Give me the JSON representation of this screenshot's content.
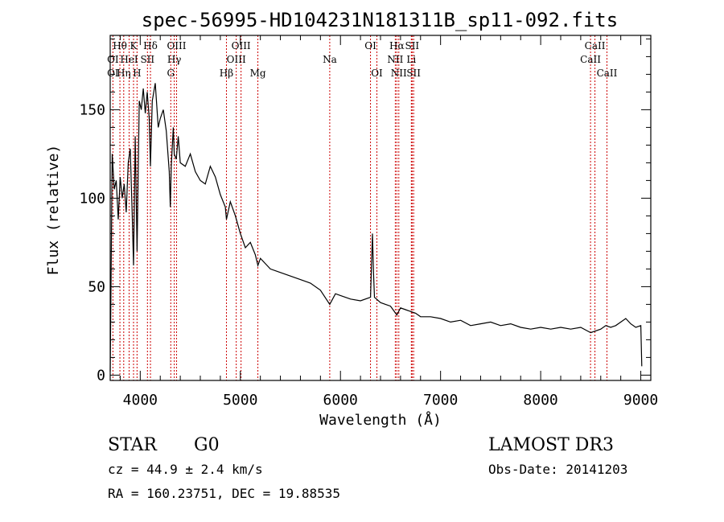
{
  "chart_data": {
    "type": "line",
    "title": "spec-56995-HD104231N181311B_sp11-092.fits",
    "xlabel": "Wavelength (Å)",
    "ylabel": "Flux (relative)",
    "xlim": [
      3700,
      9100
    ],
    "ylim": [
      -3,
      192
    ],
    "xticks": [
      4000,
      5000,
      6000,
      7000,
      8000,
      9000
    ],
    "yticks": [
      0,
      50,
      100,
      150
    ],
    "series": [
      {
        "name": "spectrum",
        "x": [
          3700,
          3720,
          3740,
          3760,
          3780,
          3800,
          3820,
          3840,
          3860,
          3880,
          3900,
          3920,
          3933,
          3950,
          3968,
          3990,
          4010,
          4030,
          4050,
          4070,
          4090,
          4102,
          4120,
          4150,
          4180,
          4200,
          4230,
          4260,
          4290,
          4300,
          4310,
          4330,
          4340,
          4360,
          4380,
          4400,
          4450,
          4500,
          4550,
          4600,
          4650,
          4700,
          4750,
          4800,
          4850,
          4861,
          4900,
          4950,
          5000,
          5050,
          5100,
          5150,
          5175,
          5200,
          5300,
          5400,
          5500,
          5600,
          5700,
          5800,
          5893,
          5950,
          6000,
          6100,
          6200,
          6300,
          6320,
          6330,
          6340,
          6400,
          6450,
          6500,
          6563,
          6600,
          6650,
          6700,
          6750,
          6800,
          6900,
          7000,
          7100,
          7200,
          7300,
          7400,
          7500,
          7600,
          7700,
          7800,
          7900,
          8000,
          8100,
          8200,
          8300,
          8400,
          8500,
          8600,
          8650,
          8700,
          8750,
          8800,
          8850,
          8900,
          8950,
          9000,
          9010
        ],
        "values": [
          2,
          125,
          105,
          110,
          88,
          112,
          100,
          108,
          92,
          120,
          128,
          90,
          62,
          135,
          70,
          155,
          150,
          162,
          148,
          160,
          145,
          118,
          155,
          165,
          140,
          145,
          150,
          138,
          115,
          95,
          118,
          140,
          125,
          122,
          135,
          120,
          118,
          125,
          115,
          110,
          108,
          118,
          112,
          102,
          95,
          88,
          98,
          90,
          80,
          72,
          75,
          68,
          62,
          66,
          60,
          58,
          56,
          54,
          52,
          48,
          40,
          46,
          45,
          43,
          42,
          44,
          80,
          58,
          44,
          41,
          40,
          39,
          34,
          38,
          37,
          36,
          35,
          33,
          33,
          32,
          30,
          31,
          28,
          29,
          30,
          28,
          29,
          27,
          26,
          27,
          26,
          27,
          26,
          27,
          24,
          26,
          28,
          27,
          28,
          30,
          32,
          29,
          27,
          28,
          5
        ]
      }
    ],
    "emission_lines": [
      {
        "label": "Hθ",
        "wl": 3797,
        "row": 1
      },
      {
        "label": "OI",
        "wl": 3727,
        "row": 2
      },
      {
        "label": "OI",
        "wl": 3727,
        "row": 3
      },
      {
        "label": "K",
        "wl": 3933,
        "row": 1
      },
      {
        "label": "HeI",
        "wl": 3889,
        "row": 2
      },
      {
        "label": "Hη",
        "wl": 3835,
        "row": 3
      },
      {
        "label": "H",
        "wl": 3968,
        "row": 3
      },
      {
        "label": "Hδ",
        "wl": 4102,
        "row": 1
      },
      {
        "label": "SII",
        "wl": 4072,
        "row": 2
      },
      {
        "label": "OIII",
        "wl": 4363,
        "row": 1
      },
      {
        "label": "Hγ",
        "wl": 4340,
        "row": 2
      },
      {
        "label": "G",
        "wl": 4305,
        "row": 3
      },
      {
        "label": "OIII",
        "wl": 5007,
        "row": 1
      },
      {
        "label": "OIII",
        "wl": 4959,
        "row": 2
      },
      {
        "label": "Hβ",
        "wl": 4861,
        "row": 3
      },
      {
        "label": "Mg",
        "wl": 5175,
        "row": 3
      },
      {
        "label": "Na",
        "wl": 5893,
        "row": 2
      },
      {
        "label": "OI",
        "wl": 6300,
        "row": 1
      },
      {
        "label": "OI",
        "wl": 6364,
        "row": 3
      },
      {
        "label": "Hα",
        "wl": 6563,
        "row": 1
      },
      {
        "label": "SII",
        "wl": 6716,
        "row": 1
      },
      {
        "label": "NII",
        "wl": 6548,
        "row": 2
      },
      {
        "label": "Li",
        "wl": 6708,
        "row": 2
      },
      {
        "label": "NII",
        "wl": 6583,
        "row": 3
      },
      {
        "label": "SII",
        "wl": 6731,
        "row": 3
      },
      {
        "label": "CaII",
        "wl": 8542,
        "row": 1
      },
      {
        "label": "CaII",
        "wl": 8498,
        "row": 2
      },
      {
        "label": "CaII",
        "wl": 8662,
        "row": 3
      }
    ]
  },
  "info": {
    "object_type": "STAR",
    "subclass": "G0",
    "survey": "LAMOST DR3",
    "cz": "cz = 44.9 ± 2.4 km/s",
    "obs_date": "Obs-Date: 20141203",
    "coords": "RA = 160.23751, DEC =  19.88535"
  },
  "colors": {
    "spectrum": "#000000",
    "line_marker": "#cc0000"
  }
}
